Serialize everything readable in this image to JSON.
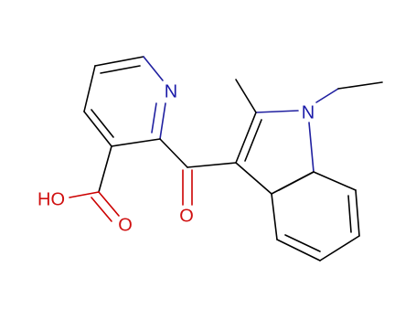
{
  "atoms": [
    {
      "label": "N"
    },
    {
      "label": "N"
    },
    {
      "label": "O"
    },
    {
      "label": "HO"
    },
    {
      "label": "O"
    }
  ]
}
